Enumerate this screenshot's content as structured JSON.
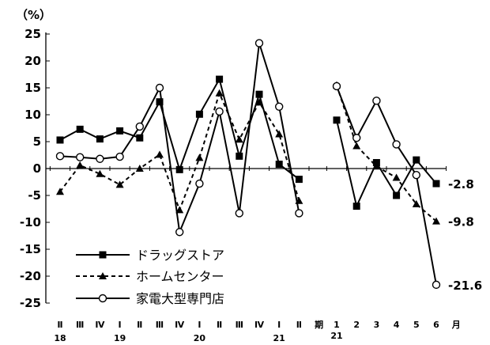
{
  "chart_data": {
    "type": "line",
    "ylabel": "（%）",
    "ylim": [
      -25,
      25
    ],
    "yticks": [
      25,
      20,
      15,
      10,
      5,
      0,
      -5,
      -10,
      -15,
      -20,
      -25
    ],
    "grid": false,
    "legend_position": "bottom-left",
    "quarter_labels": [
      "Ⅱ",
      "Ⅲ",
      "Ⅳ",
      "Ⅰ",
      "Ⅱ",
      "Ⅲ",
      "Ⅳ",
      "Ⅰ",
      "Ⅱ",
      "Ⅲ",
      "Ⅳ",
      "Ⅰ",
      "Ⅱ",
      "期"
    ],
    "month_labels": [
      "1",
      "2",
      "3",
      "4",
      "5",
      "6",
      "月"
    ],
    "year_labels": [
      {
        "text": "18",
        "at": 0
      },
      {
        "text": "19",
        "at": 3
      },
      {
        "text": "20",
        "at": 7
      },
      {
        "text": "21",
        "at": 11
      },
      {
        "text": "21",
        "at": 14
      }
    ],
    "series": [
      {
        "name": "ドラッグストア",
        "style": "solid",
        "marker": "square",
        "quarterly": [
          5.3,
          7.3,
          5.5,
          7.0,
          5.7,
          12.4,
          -0.2,
          10.1,
          16.6,
          2.3,
          13.8,
          0.8,
          -2.0
        ],
        "monthly": [
          9.0,
          -7.0,
          1.1,
          -5.0,
          1.6,
          -2.8
        ],
        "end_label": "-2.8"
      },
      {
        "name": "ホームセンター",
        "style": "dashed",
        "marker": "triangle",
        "quarterly": [
          -4.3,
          0.6,
          -1.0,
          -3.0,
          0.0,
          2.6,
          -7.7,
          2.0,
          14.0,
          5.4,
          12.3,
          6.4,
          -6.0
        ],
        "monthly": [
          15.5,
          4.2,
          0.4,
          -1.7,
          -6.6,
          -9.8
        ],
        "end_label": "-9.8"
      },
      {
        "name": "家電大型専門店",
        "style": "solid",
        "marker": "circle",
        "quarterly": [
          2.3,
          2.1,
          1.8,
          2.2,
          7.8,
          15.0,
          -11.8,
          -2.8,
          10.6,
          -8.3,
          23.3,
          11.5,
          -8.3
        ],
        "monthly": [
          15.3,
          5.7,
          12.6,
          4.5,
          -1.2,
          -21.6
        ],
        "end_label": "-21.6"
      }
    ]
  }
}
